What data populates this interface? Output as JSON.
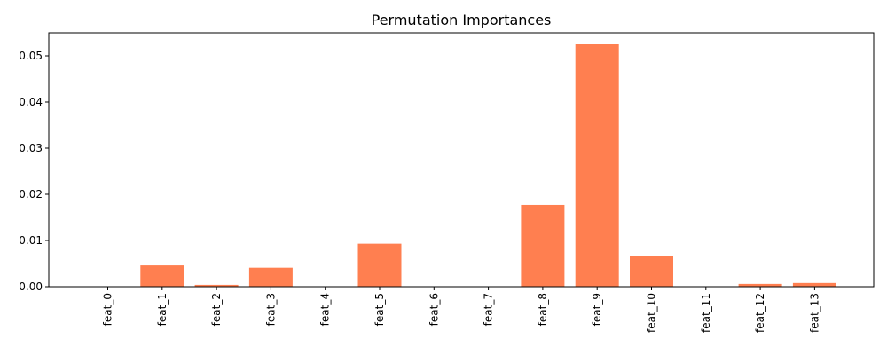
{
  "chart_data": {
    "type": "bar",
    "title": "Permutation Importances",
    "xlabel": "",
    "ylabel": "",
    "categories": [
      "feat_0",
      "feat_1",
      "feat_2",
      "feat_3",
      "feat_4",
      "feat_5",
      "feat_6",
      "feat_7",
      "feat_8",
      "feat_9",
      "feat_10",
      "feat_11",
      "feat_12",
      "feat_13"
    ],
    "values": [
      0.0,
      0.0046,
      0.0004,
      0.0041,
      0.0,
      0.0093,
      0.0,
      0.0,
      0.0177,
      0.0525,
      0.0066,
      0.0,
      0.0006,
      0.0008
    ],
    "ylim": [
      0,
      0.055
    ],
    "yticks": [
      0.0,
      0.01,
      0.02,
      0.03,
      0.04,
      0.05
    ],
    "ytick_labels": [
      "0.00",
      "0.01",
      "0.02",
      "0.03",
      "0.04",
      "0.05"
    ],
    "bar_color": "#ff7f50",
    "grid": false,
    "x_tick_rotation": "vertical"
  }
}
